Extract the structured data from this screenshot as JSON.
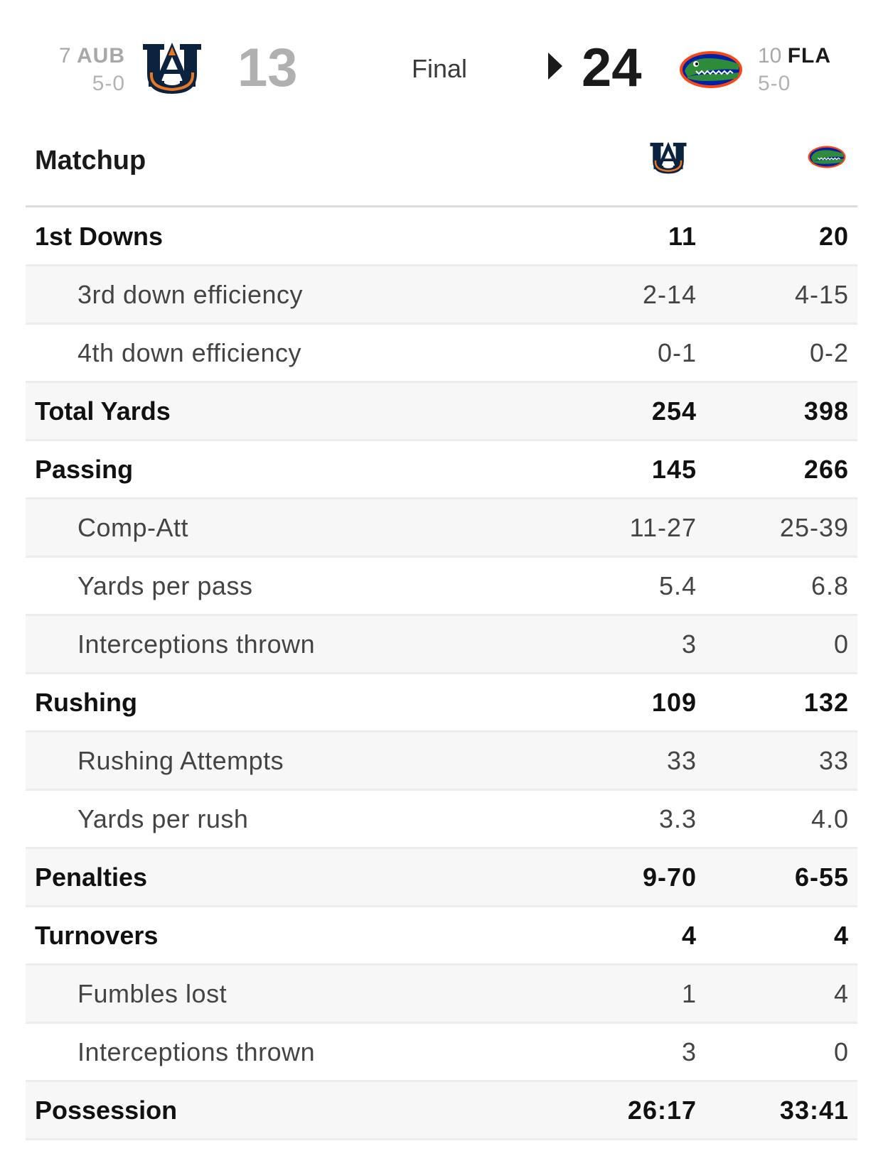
{
  "header": {
    "away": {
      "rank": "7",
      "abbr": "AUB",
      "record": "5-0",
      "score": "13",
      "logo": "auburn-au-logo",
      "color_primary": "#0c2340",
      "color_secondary": "#e87722"
    },
    "home": {
      "rank": "10",
      "abbr": "FLA",
      "record": "5-0",
      "score": "24",
      "logo": "florida-gator-logo",
      "color_primary": "#0021a5",
      "color_secondary": "#fa4616"
    },
    "status": "Final",
    "winner_indicator": "right-arrow-icon"
  },
  "matchup": {
    "title": "Matchup",
    "rows": [
      {
        "label": "1st Downs",
        "away": "11",
        "home": "20",
        "kind": "main"
      },
      {
        "label": "3rd down efficiency",
        "away": "2-14",
        "home": "4-15",
        "kind": "sub"
      },
      {
        "label": "4th down efficiency",
        "away": "0-1",
        "home": "0-2",
        "kind": "sub"
      },
      {
        "label": "Total Yards",
        "away": "254",
        "home": "398",
        "kind": "main"
      },
      {
        "label": "Passing",
        "away": "145",
        "home": "266",
        "kind": "main"
      },
      {
        "label": "Comp-Att",
        "away": "11-27",
        "home": "25-39",
        "kind": "sub"
      },
      {
        "label": "Yards per pass",
        "away": "5.4",
        "home": "6.8",
        "kind": "sub"
      },
      {
        "label": "Interceptions thrown",
        "away": "3",
        "home": "0",
        "kind": "sub"
      },
      {
        "label": "Rushing",
        "away": "109",
        "home": "132",
        "kind": "main"
      },
      {
        "label": "Rushing Attempts",
        "away": "33",
        "home": "33",
        "kind": "sub"
      },
      {
        "label": "Yards per rush",
        "away": "3.3",
        "home": "4.0",
        "kind": "sub"
      },
      {
        "label": "Penalties",
        "away": "9-70",
        "home": "6-55",
        "kind": "main"
      },
      {
        "label": "Turnovers",
        "away": "4",
        "home": "4",
        "kind": "main"
      },
      {
        "label": "Fumbles lost",
        "away": "1",
        "home": "4",
        "kind": "sub"
      },
      {
        "label": "Interceptions thrown",
        "away": "3",
        "home": "0",
        "kind": "sub"
      },
      {
        "label": "Possession",
        "away": "26:17",
        "home": "33:41",
        "kind": "main"
      }
    ]
  }
}
